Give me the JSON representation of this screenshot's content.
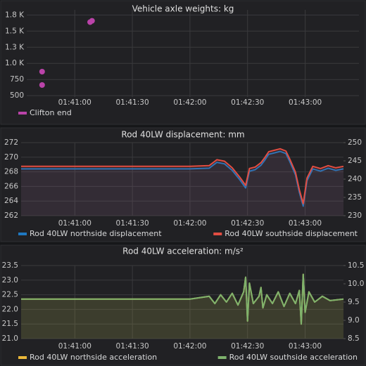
{
  "chart_data": [
    {
      "type": "scatter",
      "title": "Vehicle axle weights: kg",
      "xlim": [
        "01:40:35",
        "01:43:28"
      ],
      "xticks": [
        "01:41:00",
        "01:41:30",
        "01:42:00",
        "01:42:30",
        "01:43:00"
      ],
      "ylim": [
        480,
        1830
      ],
      "yticks": [
        {
          "value": 500,
          "label": "500"
        },
        {
          "value": 750,
          "label": "750"
        },
        {
          "value": 1000,
          "label": "1.0 K"
        },
        {
          "value": 1250,
          "label": "1.3 K"
        },
        {
          "value": 1500,
          "label": "1.5 K"
        },
        {
          "value": 1750,
          "label": "1.8 K"
        }
      ],
      "grid": true,
      "legend": "bottom-left",
      "series": [
        {
          "name": "Clifton end",
          "color": "#ba43a9",
          "x": [
            "01:40:43",
            "01:40:43",
            "01:41:08",
            "01:41:09"
          ],
          "values": [
            872,
            665,
            1640,
            1660
          ]
        }
      ]
    },
    {
      "type": "line",
      "title": "Rod 40LW displacement: mm",
      "xlim": [
        "01:40:32",
        "01:43:20"
      ],
      "xticks": [
        "01:41:00",
        "01:41:30",
        "01:42:00",
        "01:42:30",
        "01:43:00"
      ],
      "ylim": [
        262,
        272
      ],
      "yticks": [
        262,
        264,
        266,
        268,
        270,
        272
      ],
      "y2lim": [
        230,
        250
      ],
      "y2ticks": [
        230,
        235,
        240,
        245,
        250
      ],
      "grid": true,
      "legend": "bottom",
      "x": [
        "01:40:32",
        "01:41:00",
        "01:41:30",
        "01:42:00",
        "01:42:10",
        "01:42:14",
        "01:42:18",
        "01:42:22",
        "01:42:26",
        "01:42:29",
        "01:42:31",
        "01:42:34",
        "01:42:37",
        "01:42:39",
        "01:42:41",
        "01:42:44",
        "01:42:47",
        "01:42:50",
        "01:42:52",
        "01:42:55",
        "01:42:57",
        "01:42:59",
        "01:43:01",
        "01:43:04",
        "01:43:08",
        "01:43:12",
        "01:43:16",
        "01:43:20"
      ],
      "series": [
        {
          "name": "Rod 40LW northside displacement",
          "color": "#1f78c1",
          "values": [
            268.4,
            268.4,
            268.4,
            268.4,
            268.5,
            269.3,
            269.1,
            268.2,
            266.9,
            265.8,
            268.1,
            268.3,
            268.9,
            269.6,
            270.4,
            270.6,
            270.8,
            270.5,
            269.4,
            267.6,
            265.2,
            263.3,
            266.8,
            268.4,
            268.1,
            268.5,
            268.2,
            268.4
          ]
        },
        {
          "name": "Rod 40LW southside displacement",
          "color": "#e24d42",
          "axis": "y2",
          "values": [
            243.5,
            243.5,
            243.5,
            243.5,
            243.7,
            245.3,
            244.9,
            243.1,
            240.5,
            238.3,
            242.9,
            243.3,
            244.5,
            245.9,
            247.5,
            247.9,
            248.3,
            247.7,
            245.5,
            241.9,
            237.1,
            233.3,
            240.3,
            243.5,
            242.9,
            243.7,
            243.1,
            243.5
          ]
        }
      ]
    },
    {
      "type": "line",
      "title": "Rod 40LW acceleration: m/s²",
      "xlim": [
        "01:40:32",
        "01:43:20"
      ],
      "xticks": [
        "01:41:00",
        "01:41:30",
        "01:42:00",
        "01:42:30",
        "01:43:00"
      ],
      "ylim": [
        21,
        23.5
      ],
      "yticks": [
        {
          "value": 21,
          "label": "21.0"
        },
        21.5,
        {
          "value": 22,
          "label": "22.0"
        },
        22.5,
        {
          "value": 23,
          "label": "23.0"
        },
        23.5
      ],
      "y2lim": [
        8.5,
        10.5
      ],
      "y2ticks": [
        8.5,
        {
          "value": 9,
          "label": "9.0"
        },
        9.5,
        {
          "value": 10,
          "label": "10.0"
        },
        10.5
      ],
      "grid": true,
      "legend": "bottom",
      "x": [
        "01:40:32",
        "01:41:00",
        "01:41:30",
        "01:42:00",
        "01:42:10",
        "01:42:13",
        "01:42:16",
        "01:42:19",
        "01:42:22",
        "01:42:25",
        "01:42:28",
        "01:42:29",
        "01:42:30",
        "01:42:31",
        "01:42:33",
        "01:42:36",
        "01:42:37",
        "01:42:38",
        "01:42:40",
        "01:42:43",
        "01:42:46",
        "01:42:49",
        "01:42:52",
        "01:42:55",
        "01:42:57",
        "01:42:58",
        "01:42:59",
        "01:43:00",
        "01:43:02",
        "01:43:05",
        "01:43:09",
        "01:43:13",
        "01:43:20"
      ],
      "series": [
        {
          "name": "Rod 40LW northside acceleration",
          "color": "#eab839",
          "values": [
            22.35,
            22.35,
            22.35,
            22.35,
            22.45,
            22.2,
            22.5,
            22.25,
            22.55,
            22.15,
            22.6,
            23.1,
            21.6,
            22.9,
            22.2,
            22.45,
            22.75,
            22.05,
            22.5,
            22.2,
            22.6,
            22.1,
            22.55,
            22.2,
            22.65,
            21.5,
            23.2,
            21.9,
            22.6,
            22.25,
            22.45,
            22.3,
            22.35
          ]
        },
        {
          "name": "Rod 40LW southside acceleration",
          "color": "#7eb26d",
          "axis": "y2",
          "values": [
            9.58,
            9.58,
            9.58,
            9.58,
            9.66,
            9.46,
            9.7,
            9.5,
            9.74,
            9.42,
            9.78,
            10.18,
            8.98,
            10.02,
            9.46,
            9.66,
            9.9,
            9.34,
            9.7,
            9.46,
            9.78,
            9.38,
            9.74,
            9.46,
            9.82,
            8.9,
            10.26,
            9.22,
            9.78,
            9.5,
            9.66,
            9.54,
            9.58
          ]
        }
      ]
    }
  ]
}
